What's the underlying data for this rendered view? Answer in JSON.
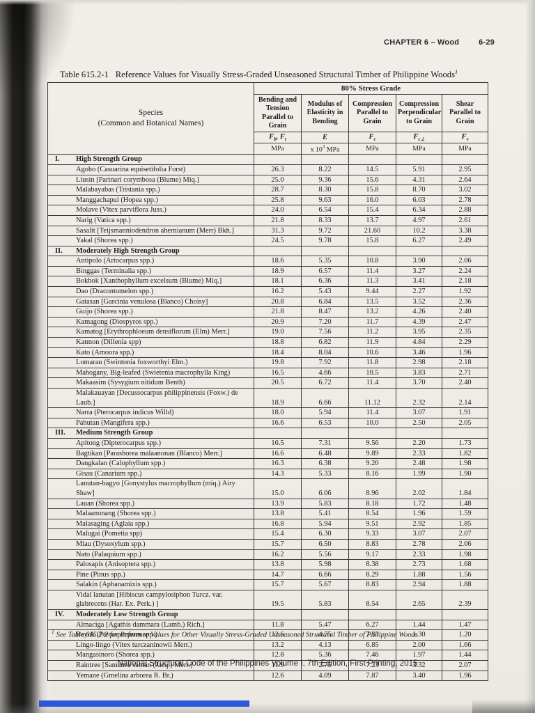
{
  "page": {
    "chapter_header": "CHAPTER 6 – Wood",
    "page_number": "6-29",
    "title_label": "Table 615.2-1",
    "title_text": "Reference Values for Visually Stress-Graded Unseasoned Structural Timber of Philippine Woods",
    "title_superscript": "1",
    "footnote_marker": "1",
    "footnote": "See Table 615.2-2 for Reference Values for Other Visually Stress-Graded Unseasoned Structural Timber of Philippine Woods",
    "footer": "National Structural Code of the Philippines Volume I, 7th Edition, First Printing, 2015",
    "blue_strip_color": "#2b57d8"
  },
  "table": {
    "species_header_line1": "Species",
    "species_header_line2": "(Common and Botanical Names)",
    "stress_grade_header": "80% Stress Grade",
    "columns": [
      {
        "label": "Bending and Tension Parallel to Grain",
        "symbol": "F_b_, F_t_",
        "unit": "MPa"
      },
      {
        "label": "Modulus of Elasticity in Bending",
        "symbol": "E",
        "unit": "x 10^3^ MPa"
      },
      {
        "label": "Compression Parallel to Grain",
        "symbol": "F_c_",
        "unit": "MPa"
      },
      {
        "label": "Compression Perpendicular to Grain",
        "symbol": "F_c⊥_",
        "unit": "MPa"
      },
      {
        "label": "Shear Parallel to Grain",
        "symbol": "F_v_",
        "unit": "MPa"
      }
    ],
    "groups": [
      {
        "numeral": "I.",
        "name": "High Strength Group",
        "rows": [
          {
            "species": "Agoho (Casuarina equisetifolia Forst)",
            "values": [
              "26.3",
              "8.22",
              "14.5",
              "5.91",
              "2.95"
            ]
          },
          {
            "species": "Liusin [Parinari corymbosa (Blume) Miq.]",
            "values": [
              "25.0",
              "9.36",
              "15.6",
              "4.31",
              "2.64"
            ]
          },
          {
            "species": "Malabayabas (Tristania spp.)",
            "values": [
              "28.7",
              "8.30",
              "15.8",
              "8.70",
              "3.02"
            ]
          },
          {
            "species": "Manggachapui (Hopea spp.)",
            "values": [
              "25.8",
              "9.63",
              "16.0",
              "6.03",
              "2.78"
            ]
          },
          {
            "species": "Molave (Vitex parviflora Juss.)",
            "values": [
              "24.0",
              "6.54",
              "15.4",
              "6.34",
              "2.88"
            ]
          },
          {
            "species": "Narig (Vatica spp.)",
            "values": [
              "21.8",
              "8.33",
              "13.7",
              "4.97",
              "2.61"
            ]
          },
          {
            "species": "Sasalit [Teijsmanniodendron ahernianum (Merr) Bkh.]",
            "values": [
              "31.3",
              "9.72",
              "21.60",
              "10.2",
              "3.38"
            ]
          },
          {
            "species": "Yakal (Shorea spp.)",
            "values": [
              "24.5",
              "9.78",
              "15.8",
              "6.27",
              "2.49"
            ]
          }
        ]
      },
      {
        "numeral": "II.",
        "name": "Moderately High Strength Group",
        "rows": [
          {
            "species": "Antipolo (Artocarpus spp.)",
            "values": [
              "18.6",
              "5.35",
              "10.8",
              "3.90",
              "2.06"
            ]
          },
          {
            "species": "Binggas (Terminalia spp.)",
            "values": [
              "18.9",
              "6.57",
              "11.4",
              "3.27",
              "2.24"
            ]
          },
          {
            "species": "Bokbok [Xanthophyllum excelsum (Blume) Miq.]",
            "values": [
              "18.1",
              "6.36",
              "11.3",
              "3.41",
              "2.18"
            ]
          },
          {
            "species": "Dao (Dracontomelon spp.)",
            "values": [
              "16.2",
              "5.43",
              "9.44",
              "2.27",
              "1.92"
            ]
          },
          {
            "species": "Gatasan [Garcinia venulosa (Blanco) Choisy]",
            "values": [
              "20.8",
              "6.84",
              "13.5",
              "3.52",
              "2.36"
            ]
          },
          {
            "species": "Guijo (Shorea spp.)",
            "values": [
              "21.8",
              "8.47",
              "13.2",
              "4.26",
              "2.40"
            ]
          },
          {
            "species": "Kamagong (Diospyros spp.)",
            "values": [
              "20.9",
              "7.20",
              "11.7",
              "4.39",
              "2.47"
            ]
          },
          {
            "species": "Kamatog [Erythrophloeum densiflorum (Elm) Merr.]",
            "values": [
              "19.0",
              "7.56",
              "11.2",
              "3.95",
              "2.35"
            ]
          },
          {
            "species": "Katmon (Dillenia spp)",
            "values": [
              "18.8",
              "6.82",
              "11.9",
              "4.84",
              "2.29"
            ]
          },
          {
            "species": "Kato (Amoora spp.)",
            "values": [
              "18.4",
              "8.04",
              "10.6",
              "3.46",
              "1.96"
            ]
          },
          {
            "species": "Lomarau (Swintonia foxworthyi Elm.)",
            "values": [
              "19.8",
              "7.92",
              "11.8",
              "2.98",
              "2.18"
            ]
          },
          {
            "species": "Mahogany, Big-leafed (Swietenia macrophylla King)",
            "values": [
              "16.5",
              "4.66",
              "10.5",
              "3.83",
              "2.71"
            ]
          },
          {
            "species": "Makaasim (Sysygium nitidum Benth)",
            "values": [
              "20.5",
              "6.72",
              "11.4",
              "3.70",
              "2.40"
            ]
          },
          {
            "species": "Malakauayan [Decussocarpus philippinensis (Foxw.) de Laub.]",
            "values": [
              "18.9",
              "6.66",
              "11.12",
              "2.32",
              "2.14"
            ]
          },
          {
            "species": "Narra (Pterocarpus indicus Willd)",
            "values": [
              "18.0",
              "5.94",
              "11.4",
              "3.07",
              "1.91"
            ]
          },
          {
            "species": "Pahutan (Mangifera spp.)",
            "values": [
              "16.6",
              "6.53",
              "10.0",
              "2.50",
              "2.05"
            ]
          }
        ]
      },
      {
        "numeral": "III.",
        "name": "Medium Strength Group",
        "rows": [
          {
            "species": "Apitong (Dipterocarpus spp.)",
            "values": [
              "16.5",
              "7.31",
              "9.56",
              "2.20",
              "1.73"
            ]
          },
          {
            "species": "Bagtikan [Parashorea malaanonan (Blanco) Merr.]",
            "values": [
              "16.6",
              "6.48",
              "9.89",
              "2.33",
              "1.82"
            ]
          },
          {
            "species": "Dangkalan (Calophyllum spp.)",
            "values": [
              "16.3",
              "6.38",
              "9.20",
              "2.48",
              "1.98"
            ]
          },
          {
            "species": "Gisau (Canarium spp.)",
            "values": [
              "14.3",
              "5.33",
              "8.16",
              "1.99",
              "1.90"
            ]
          },
          {
            "species": "Lanutan-bagyo [Gonystylus macrophyllum (miq.) Airy Shaw]",
            "values": [
              "15.0",
              "6.06",
              "8.96",
              "2.02",
              "1.84"
            ]
          },
          {
            "species": "Lauan (Shorea spp.)",
            "values": [
              "13.9",
              "5.83",
              "8.18",
              "1.72",
              "1.48"
            ]
          },
          {
            "species": "Malaanonang (Shorea spp.)",
            "values": [
              "13.8",
              "5.41",
              "8.54",
              "1.96",
              "1.59"
            ]
          },
          {
            "species": "Malasaging (Aglaia spp.)",
            "values": [
              "16.8",
              "5.94",
              "9.51",
              "2.92",
              "1.85"
            ]
          },
          {
            "species": "Malugai (Pometia spp)",
            "values": [
              "15.4",
              "6.30",
              "9.33",
              "3.07",
              "2.07"
            ]
          },
          {
            "species": "Miau (Dysoxylum spp.)",
            "values": [
              "15.7",
              "6.50",
              "8.83",
              "2.78",
              "2.06"
            ]
          },
          {
            "species": "Nato (Palaquium spp.)",
            "values": [
              "16.2",
              "5.56",
              "9.17",
              "2.33",
              "1.98"
            ]
          },
          {
            "species": "Palosapis (Anisoptera spp.)",
            "values": [
              "13.8",
              "5.98",
              "8.38",
              "2.73",
              "1.68"
            ]
          },
          {
            "species": "Pine (Pinus spp.)",
            "values": [
              "14.7",
              "6.66",
              "8.29",
              "1.88",
              "1.56"
            ]
          },
          {
            "species": "Salakin (Aphanamixis spp.)",
            "values": [
              "15.7",
              "5.67",
              "8.83",
              "2.94",
              "1.88"
            ]
          },
          {
            "species": "Vidal lanutan [Hibiscus campylosiphon Turcz. var. glabrecens (Har. Ex. Perk.) ]",
            "values": [
              "19.5",
              "5.83",
              "8.54",
              "2.65",
              "2.39"
            ]
          }
        ]
      },
      {
        "numeral": "IV.",
        "name": "Moderately Low Strength Group",
        "rows": [
          {
            "species": "Almaciga [Agathis dammara (Lamb.) Rich.]",
            "values": [
              "11.8",
              "5.47",
              "6.27",
              "1.44",
              "1.47"
            ]
          },
          {
            "species": "Bayok (Pterospermum spp.)",
            "values": [
              "12.6",
              "4.75",
              "7.33",
              "1.30",
              "1.20"
            ]
          },
          {
            "species": "Lingo-lingo (Vitex turczaninowii Merr.)",
            "values": [
              "13.2",
              "4.13",
              "6.85",
              "2.00",
              "1.66"
            ]
          },
          {
            "species": "Mangasinoro (Shorea spp.)",
            "values": [
              "12.8",
              "5.36",
              "7.46",
              "1.97",
              "1.44"
            ]
          },
          {
            "species": "Raintree [Samanea saman (Jacq.) Merr.]",
            "values": [
              "11.9",
              "2.75",
              "7.23",
              "3.32",
              "2.07"
            ]
          },
          {
            "species": "Yemane (Gmelina arborea R. Br.)",
            "values": [
              "12.6",
              "4.09",
              "7.87",
              "3.40",
              "1.96"
            ]
          }
        ]
      }
    ]
  }
}
